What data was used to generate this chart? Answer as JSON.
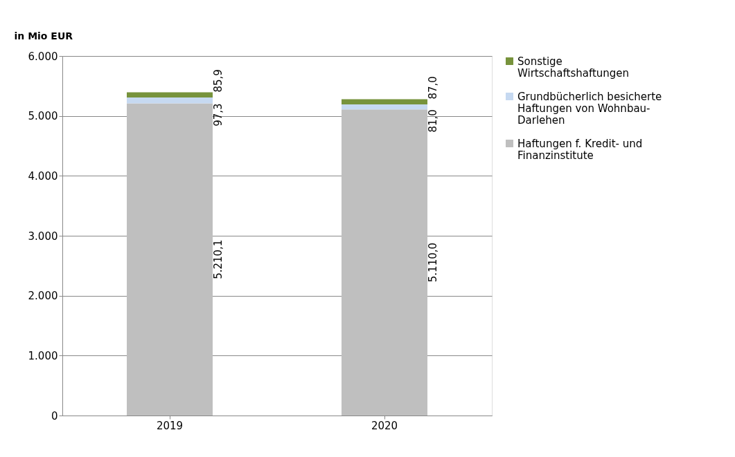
{
  "chart_data": {
    "type": "bar",
    "stacked": true,
    "ylabel": "in Mio EUR",
    "categories": [
      "2019",
      "2020"
    ],
    "series": [
      {
        "name": "Haftungen f. Kredit- und Finanzinstitute",
        "color": "#bfbfbf",
        "values": [
          5210.1,
          5110.0
        ],
        "value_labels": [
          "5.210,1",
          "5.110,0"
        ]
      },
      {
        "name": "Grundbücherlich besicherte Haftungen von Wohnbau-Darlehen",
        "color": "#c6d9f1",
        "values": [
          97.3,
          81.0
        ],
        "value_labels": [
          "97,3",
          "81,0"
        ]
      },
      {
        "name": "Sonstige Wirtschaftshaftungen",
        "color": "#77933c",
        "values": [
          85.9,
          87.0
        ],
        "value_labels": [
          "85,9",
          "87,0"
        ]
      }
    ],
    "ylim": [
      0,
      6000
    ],
    "yticks": [
      {
        "value": 0,
        "label": "0"
      },
      {
        "value": 1000,
        "label": "1.000"
      },
      {
        "value": 2000,
        "label": "2.000"
      },
      {
        "value": 3000,
        "label": "3.000"
      },
      {
        "value": 4000,
        "label": "4.000"
      },
      {
        "value": 5000,
        "label": "5.000"
      },
      {
        "value": 6000,
        "label": "6.000"
      }
    ],
    "grid": "y",
    "legend": "right"
  }
}
